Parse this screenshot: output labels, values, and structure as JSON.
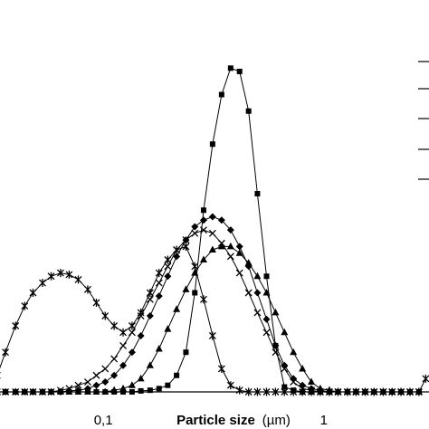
{
  "chart_data": {
    "type": "line",
    "xlabel": "Particle size",
    "xlabel_unit": "(µm)",
    "x_scale": "log",
    "xlim": [
      0.034,
      3.0
    ],
    "ylim": [
      0,
      100
    ],
    "x_ticks": [
      {
        "value": 0.1,
        "label": "0,1"
      },
      {
        "value": 1,
        "label": "1"
      }
    ],
    "legend": "right (cropped, markers not visible)",
    "series": [
      {
        "marker": "square",
        "points": [
          [
            0.033,
            0
          ],
          [
            0.036,
            0
          ],
          [
            0.04,
            0
          ],
          [
            0.044,
            0
          ],
          [
            0.048,
            0
          ],
          [
            0.053,
            0
          ],
          [
            0.058,
            0
          ],
          [
            0.064,
            0
          ],
          [
            0.07,
            0
          ],
          [
            0.077,
            0
          ],
          [
            0.085,
            0
          ],
          [
            0.093,
            0
          ],
          [
            0.102,
            0
          ],
          [
            0.112,
            0
          ],
          [
            0.123,
            0
          ],
          [
            0.135,
            0
          ],
          [
            0.148,
            0.3
          ],
          [
            0.163,
            0.5
          ],
          [
            0.179,
            1
          ],
          [
            0.196,
            2
          ],
          [
            0.215,
            5
          ],
          [
            0.237,
            12
          ],
          [
            0.26,
            30
          ],
          [
            0.285,
            55
          ],
          [
            0.313,
            75
          ],
          [
            0.344,
            90
          ],
          [
            0.378,
            98
          ],
          [
            0.415,
            97
          ],
          [
            0.456,
            85
          ],
          [
            0.5,
            60
          ],
          [
            0.55,
            35
          ],
          [
            0.604,
            14
          ],
          [
            0.663,
            1.5
          ],
          [
            0.728,
            0.5
          ],
          [
            0.8,
            0
          ],
          [
            0.878,
            0
          ],
          [
            0.964,
            0
          ],
          [
            1.06,
            0
          ],
          [
            1.16,
            0
          ],
          [
            1.28,
            0
          ],
          [
            1.4,
            0
          ],
          [
            1.54,
            0
          ],
          [
            1.69,
            0
          ],
          [
            1.86,
            0
          ],
          [
            2.04,
            0
          ],
          [
            2.24,
            0
          ],
          [
            2.46,
            0
          ],
          [
            2.7,
            0
          ]
        ]
      },
      {
        "marker": "diamond",
        "points": [
          [
            0.033,
            0
          ],
          [
            0.036,
            0
          ],
          [
            0.04,
            0
          ],
          [
            0.044,
            0
          ],
          [
            0.048,
            0
          ],
          [
            0.053,
            0
          ],
          [
            0.058,
            0
          ],
          [
            0.064,
            0
          ],
          [
            0.07,
            0.3
          ],
          [
            0.077,
            0.5
          ],
          [
            0.085,
            1
          ],
          [
            0.093,
            2
          ],
          [
            0.102,
            3
          ],
          [
            0.112,
            5
          ],
          [
            0.123,
            8
          ],
          [
            0.135,
            12
          ],
          [
            0.148,
            17
          ],
          [
            0.163,
            23
          ],
          [
            0.179,
            29
          ],
          [
            0.196,
            35
          ],
          [
            0.215,
            41
          ],
          [
            0.237,
            46
          ],
          [
            0.26,
            50
          ],
          [
            0.285,
            52
          ],
          [
            0.313,
            53
          ],
          [
            0.344,
            52
          ],
          [
            0.378,
            49
          ],
          [
            0.415,
            44
          ],
          [
            0.456,
            38
          ],
          [
            0.5,
            30
          ],
          [
            0.55,
            22
          ],
          [
            0.604,
            14
          ],
          [
            0.663,
            8
          ],
          [
            0.728,
            4
          ],
          [
            0.8,
            2
          ],
          [
            0.878,
            1
          ],
          [
            0.964,
            0.5
          ],
          [
            1.06,
            0
          ],
          [
            1.16,
            0
          ],
          [
            1.28,
            0
          ],
          [
            1.4,
            0
          ],
          [
            1.54,
            0
          ],
          [
            1.69,
            0
          ],
          [
            1.86,
            0
          ],
          [
            2.04,
            0
          ],
          [
            2.24,
            0
          ],
          [
            2.46,
            0
          ],
          [
            2.7,
            0
          ]
        ]
      },
      {
        "marker": "triangle",
        "points": [
          [
            0.033,
            0
          ],
          [
            0.036,
            0
          ],
          [
            0.04,
            0
          ],
          [
            0.044,
            0
          ],
          [
            0.048,
            0
          ],
          [
            0.053,
            0
          ],
          [
            0.058,
            0
          ],
          [
            0.064,
            0
          ],
          [
            0.07,
            0
          ],
          [
            0.077,
            0
          ],
          [
            0.085,
            0
          ],
          [
            0.093,
            0
          ],
          [
            0.102,
            0
          ],
          [
            0.112,
            0.5
          ],
          [
            0.123,
            1
          ],
          [
            0.135,
            2
          ],
          [
            0.148,
            4
          ],
          [
            0.163,
            8
          ],
          [
            0.179,
            13
          ],
          [
            0.196,
            19
          ],
          [
            0.215,
            25
          ],
          [
            0.237,
            31
          ],
          [
            0.26,
            36
          ],
          [
            0.285,
            40
          ],
          [
            0.313,
            43
          ],
          [
            0.344,
            44
          ],
          [
            0.378,
            44
          ],
          [
            0.415,
            42
          ],
          [
            0.456,
            39
          ],
          [
            0.5,
            35
          ],
          [
            0.55,
            30
          ],
          [
            0.604,
            24
          ],
          [
            0.663,
            18
          ],
          [
            0.728,
            12
          ],
          [
            0.8,
            7
          ],
          [
            0.878,
            3
          ],
          [
            0.964,
            1
          ],
          [
            1.06,
            0.5
          ],
          [
            1.16,
            0
          ],
          [
            1.28,
            0
          ],
          [
            1.4,
            0
          ],
          [
            1.54,
            0
          ],
          [
            1.69,
            0
          ],
          [
            1.86,
            0
          ],
          [
            2.04,
            0
          ],
          [
            2.24,
            0
          ],
          [
            2.46,
            0
          ],
          [
            2.7,
            0
          ]
        ]
      },
      {
        "marker": "x",
        "points": [
          [
            0.033,
            0
          ],
          [
            0.036,
            0
          ],
          [
            0.04,
            0
          ],
          [
            0.044,
            0
          ],
          [
            0.048,
            0
          ],
          [
            0.053,
            0
          ],
          [
            0.058,
            0
          ],
          [
            0.064,
            0.5
          ],
          [
            0.07,
            1
          ],
          [
            0.077,
            2
          ],
          [
            0.085,
            3
          ],
          [
            0.093,
            5
          ],
          [
            0.102,
            7
          ],
          [
            0.112,
            10
          ],
          [
            0.123,
            14
          ],
          [
            0.135,
            18
          ],
          [
            0.148,
            23
          ],
          [
            0.163,
            28
          ],
          [
            0.179,
            33
          ],
          [
            0.196,
            38
          ],
          [
            0.215,
            43
          ],
          [
            0.237,
            46
          ],
          [
            0.26,
            48
          ],
          [
            0.285,
            49
          ],
          [
            0.313,
            48
          ],
          [
            0.344,
            45
          ],
          [
            0.378,
            41
          ],
          [
            0.415,
            36
          ],
          [
            0.456,
            30
          ],
          [
            0.5,
            24
          ],
          [
            0.55,
            18
          ],
          [
            0.604,
            12
          ],
          [
            0.663,
            7
          ],
          [
            0.728,
            3
          ],
          [
            0.8,
            1
          ],
          [
            0.878,
            0.5
          ],
          [
            0.964,
            0
          ],
          [
            1.06,
            0
          ],
          [
            1.16,
            0
          ],
          [
            1.28,
            0
          ],
          [
            1.4,
            0
          ],
          [
            1.54,
            0
          ],
          [
            1.69,
            0
          ],
          [
            1.86,
            0
          ],
          [
            2.04,
            0
          ],
          [
            2.24,
            0
          ],
          [
            2.46,
            0
          ],
          [
            2.7,
            0
          ]
        ]
      },
      {
        "marker": "star",
        "points": [
          [
            0.033,
            5
          ],
          [
            0.036,
            12
          ],
          [
            0.04,
            20
          ],
          [
            0.044,
            26
          ],
          [
            0.048,
            30
          ],
          [
            0.053,
            33
          ],
          [
            0.058,
            35
          ],
          [
            0.064,
            36
          ],
          [
            0.07,
            35.5
          ],
          [
            0.077,
            34
          ],
          [
            0.085,
            31
          ],
          [
            0.093,
            27
          ],
          [
            0.102,
            23
          ],
          [
            0.112,
            20
          ],
          [
            0.123,
            18
          ],
          [
            0.135,
            20
          ],
          [
            0.148,
            24
          ],
          [
            0.163,
            30
          ],
          [
            0.179,
            36
          ],
          [
            0.196,
            40
          ],
          [
            0.215,
            43
          ],
          [
            0.237,
            44
          ],
          [
            0.26,
            38
          ],
          [
            0.285,
            28
          ],
          [
            0.313,
            17
          ],
          [
            0.344,
            7
          ],
          [
            0.378,
            2
          ],
          [
            0.415,
            0.5
          ],
          [
            0.456,
            0
          ],
          [
            0.5,
            0
          ],
          [
            0.55,
            0
          ],
          [
            0.604,
            0
          ],
          [
            0.663,
            0
          ],
          [
            0.728,
            0
          ],
          [
            0.8,
            0
          ],
          [
            0.878,
            0
          ],
          [
            0.964,
            0
          ],
          [
            1.06,
            0
          ],
          [
            1.16,
            0
          ],
          [
            1.28,
            0
          ],
          [
            1.4,
            0
          ],
          [
            1.54,
            0
          ],
          [
            1.69,
            0
          ],
          [
            1.86,
            0
          ],
          [
            2.04,
            0
          ],
          [
            2.24,
            0
          ],
          [
            2.46,
            0
          ],
          [
            2.7,
            0
          ],
          [
            2.9,
            4
          ]
        ]
      }
    ]
  }
}
